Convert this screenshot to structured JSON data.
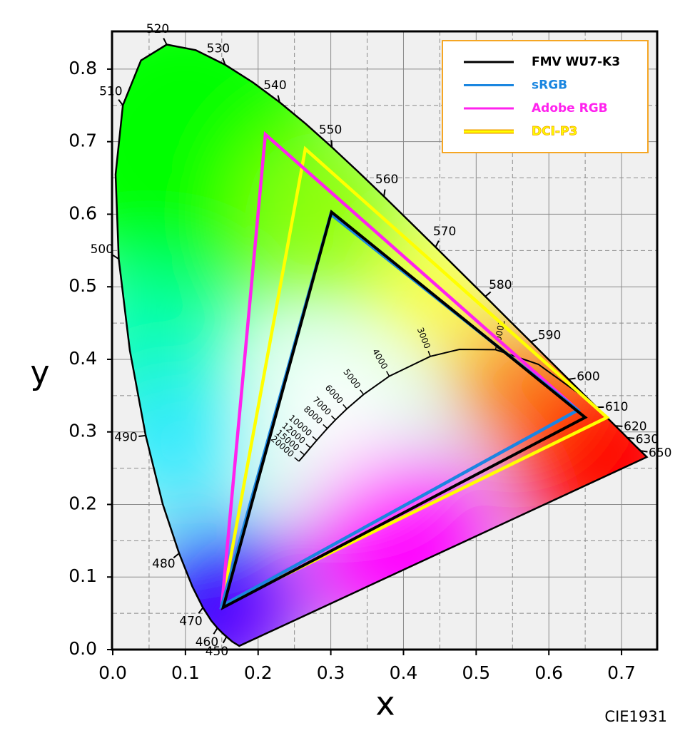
{
  "chart_data": {
    "type": "chromaticity",
    "x_label": "x",
    "y_label": "y",
    "caption": "CIE1931",
    "xlim": [
      0,
      0.75
    ],
    "ylim": [
      0,
      0.852
    ],
    "xticks": [
      {
        "value": 0,
        "label": "0.0"
      },
      0.1,
      0.2,
      0.3,
      0.4,
      0.5,
      0.6,
      0.7
    ],
    "yticks": [
      {
        "value": 0,
        "label": "0.0"
      },
      0.1,
      0.2,
      0.3,
      0.4,
      0.5,
      0.6,
      0.7,
      0.8
    ],
    "grid": true,
    "minor_grid": true,
    "legend": "upper right",
    "series": [
      {
        "name": "FMV WU7-K3",
        "color": "#000000",
        "x": [
          0.65,
          0.301,
          0.152
        ],
        "y": [
          0.32,
          0.603,
          0.058
        ]
      },
      {
        "name": "sRGB",
        "color": "#1a86e0",
        "x": [
          0.64,
          0.3,
          0.15
        ],
        "y": [
          0.33,
          0.6,
          0.06
        ]
      },
      {
        "name": "Adobe RGB",
        "color": "#ff22ee",
        "x": [
          0.64,
          0.21,
          0.15
        ],
        "y": [
          0.33,
          0.71,
          0.06
        ]
      },
      {
        "name": "DCI-P3",
        "color": "#ffff00",
        "x": [
          0.68,
          0.265,
          0.15
        ],
        "y": [
          0.32,
          0.69,
          0.06
        ]
      }
    ],
    "locus": {
      "labels": [
        null,
        null,
        "450",
        null,
        "460",
        null,
        "470",
        null,
        "480",
        null,
        "490",
        null,
        "500",
        null,
        "510",
        null,
        "520",
        null,
        "530",
        null,
        "540",
        null,
        "550",
        null,
        "560",
        null,
        "570",
        null,
        "580",
        null,
        "590",
        null,
        "600",
        null,
        "610",
        null,
        "620",
        null,
        "630",
        null,
        "650",
        null
      ],
      "x": [
        0.1741,
        0.1644,
        0.1566,
        0.151,
        0.144,
        0.1355,
        0.1241,
        0.1096,
        0.0913,
        0.0687,
        0.0454,
        0.0235,
        0.0082,
        0.0039,
        0.0139,
        0.0389,
        0.0743,
        0.1142,
        0.1547,
        0.1929,
        0.2296,
        0.2658,
        0.3016,
        0.3373,
        0.3731,
        0.4087,
        0.4441,
        0.4788,
        0.5125,
        0.5448,
        0.5752,
        0.6029,
        0.627,
        0.6482,
        0.6658,
        0.6801,
        0.6915,
        0.7006,
        0.7079,
        0.719,
        0.726,
        0.7347
      ],
      "y": [
        0.005,
        0.0109,
        0.0177,
        0.0227,
        0.0297,
        0.0399,
        0.0578,
        0.0868,
        0.1327,
        0.2007,
        0.295,
        0.4127,
        0.5384,
        0.6548,
        0.7502,
        0.812,
        0.8338,
        0.8262,
        0.8059,
        0.7816,
        0.7543,
        0.7243,
        0.6923,
        0.6589,
        0.6245,
        0.5896,
        0.5547,
        0.5202,
        0.4866,
        0.4544,
        0.4242,
        0.3965,
        0.3725,
        0.3514,
        0.334,
        0.3197,
        0.3083,
        0.2993,
        0.292,
        0.2809,
        0.274,
        0.2653
      ]
    },
    "planckian": {
      "labels": [
        null,
        null,
        "2000",
        null,
        "3000",
        "4000",
        "5000",
        "6000",
        "7000",
        "8000",
        "10000",
        "12000",
        "15000",
        "20000"
      ],
      "x": [
        0.6528,
        0.5857,
        0.5267,
        0.477,
        0.4369,
        0.3805,
        0.3451,
        0.3221,
        0.3064,
        0.2952,
        0.2807,
        0.2719,
        0.2637,
        0.256
      ],
      "y": [
        0.3444,
        0.3931,
        0.4133,
        0.4137,
        0.4041,
        0.3768,
        0.3516,
        0.3318,
        0.3166,
        0.3048,
        0.2884,
        0.2782,
        0.2683,
        0.2595
      ]
    }
  }
}
